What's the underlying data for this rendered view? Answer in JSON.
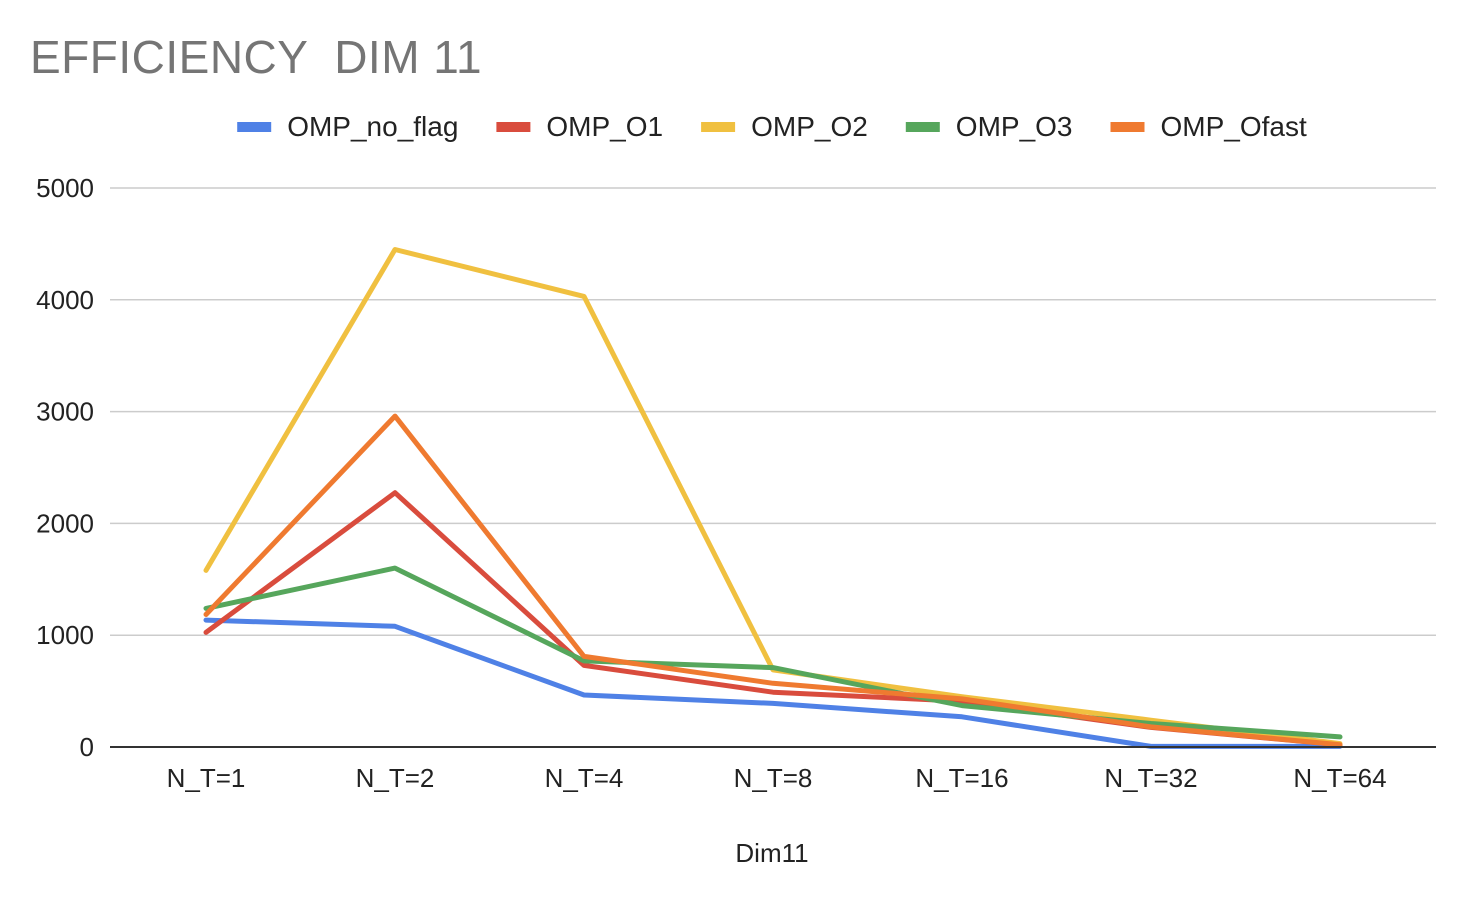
{
  "chart_data": {
    "type": "line",
    "title": "EFFICIENCY  DIM 11",
    "xlabel": "Dim11",
    "ylabel": "",
    "categories": [
      "N_T=1",
      "N_T=2",
      "N_T=4",
      "N_T=8",
      "N_T=16",
      "N_T=32",
      "N_T=64"
    ],
    "ylim": [
      0,
      5000
    ],
    "yticks": [
      0,
      1000,
      2000,
      3000,
      4000,
      5000
    ],
    "grid": true,
    "legend_position": "top",
    "series": [
      {
        "name": "OMP_no_flag",
        "color": "#4f81e6",
        "values": [
          1135,
          1080,
          465,
          390,
          270,
          5,
          5
        ]
      },
      {
        "name": "OMP_O1",
        "color": "#d94c3d",
        "values": [
          1025,
          2275,
          730,
          490,
          410,
          175,
          20
        ]
      },
      {
        "name": "OMP_O2",
        "color": "#f0c040",
        "values": [
          1580,
          4450,
          4030,
          690,
          450,
          240,
          30
        ]
      },
      {
        "name": "OMP_O3",
        "color": "#56a65c",
        "values": [
          1240,
          1600,
          770,
          710,
          370,
          210,
          90
        ]
      },
      {
        "name": "OMP_Ofast",
        "color": "#ef7a30",
        "values": [
          1185,
          2960,
          810,
          570,
          430,
          180,
          20
        ]
      }
    ]
  }
}
